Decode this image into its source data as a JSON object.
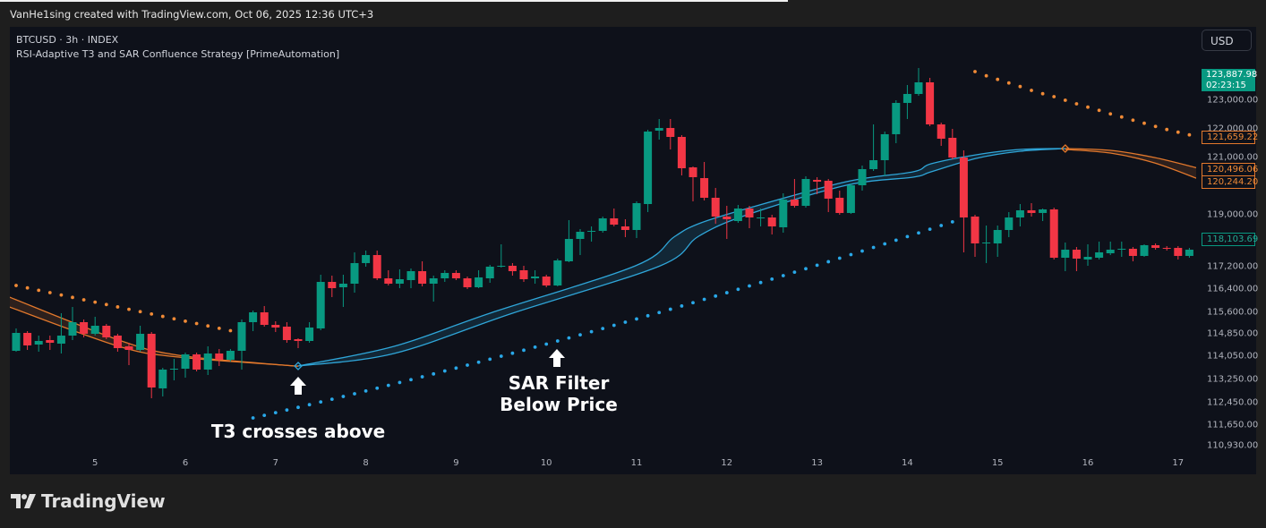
{
  "header": {
    "credit": "VanHe1sing created with TradingView.com, Oct 06, 2025 12:36 UTC+3"
  },
  "legend": {
    "symbol_line": "BTCUSD · 3h · INDEX",
    "indicator": "RSI-Adaptive T3 and SAR Confluence Strategy [PrimeAutomation]"
  },
  "currency_button": "USD",
  "price_axis": {
    "ticks": [
      123000,
      122000,
      121000,
      119000,
      117200,
      116400,
      115600,
      114850,
      114050,
      113250,
      112450,
      111650,
      110930
    ],
    "tick_labels": [
      "123,000.00",
      "122,000.00",
      "121,000.00",
      "119,000.00",
      "117,200.00",
      "116,400.00",
      "115,600.00",
      "114,850.00",
      "114,050.00",
      "113,250.00",
      "112,450.00",
      "111,650.00",
      "110,930.00"
    ],
    "labels": {
      "last_price": "123,887.98",
      "countdown": "02:23:15",
      "sar_upper": "121,659.22",
      "t3_upper": "120,496.06",
      "t3_lower": "120,244.20",
      "close": "118,103.69"
    }
  },
  "time_axis": {
    "labels": [
      "5",
      "6",
      "7",
      "8",
      "9",
      "10",
      "11",
      "12",
      "13",
      "14",
      "15",
      "16",
      "17"
    ],
    "first_day_bar_index": 7,
    "bars_per_day": 8
  },
  "annotations": {
    "t3_cross": "T3 crosses above",
    "sar_line1": "SAR Filter",
    "sar_line2": "Below Price"
  },
  "footer": {
    "brand": "TradingView"
  },
  "colors": {
    "up": "#089981",
    "down": "#f23645",
    "t3_bull": "#2fa6d9",
    "t3_bear": "#e2782c",
    "sar_bull": "#29a8e8",
    "sar_bear": "#f08a36"
  },
  "chart_data": {
    "type": "candlestick",
    "symbol": "BTCUSD",
    "interval": "3h",
    "ylim": [
      110800,
      124500
    ],
    "candles_ohlc": [
      [
        114250,
        115031,
        114219,
        114875
      ],
      [
        114875,
        114938,
        114281,
        114438
      ],
      [
        114469,
        114781,
        114219,
        114594
      ],
      [
        114625,
        114781,
        114281,
        114531
      ],
      [
        114500,
        115563,
        114156,
        114781
      ],
      [
        114781,
        115781,
        114625,
        115250
      ],
      [
        115250,
        115344,
        114719,
        114844
      ],
      [
        114844,
        115438,
        114781,
        115125
      ],
      [
        115125,
        115188,
        114656,
        114719
      ],
      [
        114781,
        114844,
        114219,
        114344
      ],
      [
        114406,
        114531,
        113750,
        114281
      ],
      [
        114281,
        115125,
        114219,
        114844
      ],
      [
        114844,
        114906,
        112594,
        112969
      ],
      [
        112938,
        113656,
        112656,
        113594
      ],
      [
        113594,
        113969,
        113219,
        113625
      ],
      [
        113625,
        114188,
        113313,
        114125
      ],
      [
        114125,
        114188,
        113531,
        113594
      ],
      [
        113594,
        114406,
        113406,
        114156
      ],
      [
        114156,
        114313,
        113719,
        113938
      ],
      [
        113938,
        114313,
        113875,
        114250
      ],
      [
        114250,
        115344,
        113594,
        115250
      ],
      [
        115250,
        115656,
        114938,
        115594
      ],
      [
        115594,
        115813,
        115094,
        115156
      ],
      [
        115156,
        115281,
        114906,
        115063
      ],
      [
        115094,
        115250,
        114531,
        114625
      ],
      [
        114656,
        114688,
        114344,
        114594
      ],
      [
        114594,
        115250,
        114531,
        115063
      ],
      [
        115031,
        116906,
        114969,
        116656
      ],
      [
        116656,
        116875,
        116125,
        116438
      ],
      [
        116469,
        116906,
        115781,
        116594
      ],
      [
        116594,
        117688,
        116281,
        117313
      ],
      [
        117313,
        117750,
        117188,
        117594
      ],
      [
        117594,
        117750,
        116719,
        116781
      ],
      [
        116781,
        117063,
        116531,
        116594
      ],
      [
        116594,
        117094,
        116438,
        116750
      ],
      [
        116719,
        117125,
        116438,
        117031
      ],
      [
        117031,
        117375,
        116500,
        116594
      ],
      [
        116594,
        116875,
        115969,
        116781
      ],
      [
        116781,
        117063,
        116656,
        116969
      ],
      [
        116969,
        117063,
        116719,
        116781
      ],
      [
        116781,
        116844,
        116406,
        116469
      ],
      [
        116469,
        117063,
        116438,
        116813
      ],
      [
        116781,
        117250,
        116625,
        117188
      ],
      [
        117188,
        117969,
        117156,
        117219
      ],
      [
        117219,
        117313,
        116875,
        117031
      ],
      [
        117063,
        117219,
        116656,
        116750
      ],
      [
        116781,
        117063,
        116594,
        116844
      ],
      [
        116844,
        116906,
        116469,
        116531
      ],
      [
        116531,
        117469,
        116500,
        117406
      ],
      [
        117375,
        118813,
        117344,
        118156
      ],
      [
        118156,
        118500,
        117594,
        118406
      ],
      [
        118438,
        118594,
        118063,
        118438
      ],
      [
        118438,
        118938,
        118375,
        118875
      ],
      [
        118875,
        119219,
        118594,
        118656
      ],
      [
        118594,
        118844,
        118219,
        118469
      ],
      [
        118469,
        119469,
        118188,
        119406
      ],
      [
        119375,
        121969,
        119094,
        121906
      ],
      [
        121938,
        122344,
        121625,
        122031
      ],
      [
        122031,
        122344,
        121281,
        121719
      ],
      [
        121719,
        121781,
        120375,
        120625
      ],
      [
        120656,
        120688,
        119469,
        120313
      ],
      [
        120281,
        120844,
        119500,
        119594
      ],
      [
        119594,
        119938,
        118688,
        118938
      ],
      [
        118938,
        119313,
        118156,
        118844
      ],
      [
        118781,
        119344,
        118719,
        119219
      ],
      [
        119219,
        119313,
        118531,
        118906
      ],
      [
        118906,
        119219,
        118594,
        118906
      ],
      [
        118906,
        119000,
        118313,
        118594
      ],
      [
        118563,
        119750,
        118375,
        119531
      ],
      [
        119531,
        120250,
        119250,
        119313
      ],
      [
        119313,
        120344,
        119250,
        120250
      ],
      [
        120219,
        120313,
        119719,
        120156
      ],
      [
        120188,
        120250,
        119094,
        119563
      ],
      [
        119594,
        119844,
        119000,
        119063
      ],
      [
        119063,
        120094,
        119031,
        120031
      ],
      [
        120031,
        120719,
        119844,
        120594
      ],
      [
        120594,
        122156,
        120531,
        120906
      ],
      [
        120906,
        121906,
        120344,
        121813
      ],
      [
        121813,
        123000,
        121500,
        122906
      ],
      [
        122906,
        123531,
        122344,
        123219
      ],
      [
        123219,
        124125,
        123156,
        123625
      ],
      [
        123625,
        123781,
        122094,
        122156
      ],
      [
        122156,
        122219,
        121406,
        121656
      ],
      [
        121688,
        122000,
        120938,
        121000
      ],
      [
        121000,
        121250,
        117688,
        118906
      ],
      [
        118938,
        119000,
        117531,
        118000
      ],
      [
        118031,
        118625,
        117313,
        118031
      ],
      [
        118000,
        118625,
        117531,
        118469
      ],
      [
        118469,
        119094,
        118219,
        118906
      ],
      [
        118906,
        119375,
        118594,
        119156
      ],
      [
        119156,
        119406,
        118938,
        119063
      ],
      [
        119063,
        119219,
        118781,
        119188
      ],
      [
        119188,
        119250,
        117438,
        117500
      ],
      [
        117500,
        118031,
        117031,
        117781
      ],
      [
        117781,
        117875,
        117031,
        117469
      ],
      [
        117438,
        117969,
        117219,
        117531
      ],
      [
        117500,
        118063,
        117438,
        117688
      ],
      [
        117656,
        118063,
        117594,
        117781
      ],
      [
        117813,
        118063,
        117531,
        117813
      ],
      [
        117813,
        117875,
        117375,
        117563
      ],
      [
        117563,
        117969,
        117531,
        117938
      ],
      [
        117938,
        118000,
        117781,
        117844
      ],
      [
        117844,
        117906,
        117750,
        117813
      ],
      [
        117844,
        117906,
        117438,
        117563
      ],
      [
        117563,
        117844,
        117500,
        117781
      ],
      [
        117750,
        118469,
        117688,
        118156
      ]
    ],
    "t3_band": [
      {
        "trend": "bear",
        "upper": [
          [
            -0.6,
            116125
          ],
          [
            9.1,
            114625
          ],
          [
            14.4,
            114094
          ],
          [
            23.7,
            113750
          ],
          [
            25,
            113719
          ]
        ],
        "lower": [
          [
            -0.6,
            115781
          ],
          [
            9.1,
            114406
          ],
          [
            14.4,
            114031
          ],
          [
            23.7,
            113750
          ],
          [
            25,
            113719
          ]
        ]
      },
      {
        "trend": "bull",
        "upper": [
          [
            25,
            113719
          ],
          [
            33.5,
            114406
          ],
          [
            42,
            115563
          ],
          [
            54.9,
            117219
          ],
          [
            58.3,
            118219
          ],
          [
            60.5,
            118688
          ],
          [
            64.8,
            119219
          ],
          [
            73.6,
            120156
          ],
          [
            79.5,
            120500
          ],
          [
            81.1,
            120781
          ],
          [
            85.1,
            121094
          ],
          [
            89,
            121281
          ],
          [
            93,
            121313
          ]
        ],
        "lower": [
          [
            25,
            113719
          ],
          [
            33.5,
            114156
          ],
          [
            44,
            115563
          ],
          [
            57.1,
            117219
          ],
          [
            60.5,
            118250
          ],
          [
            64.8,
            119000
          ],
          [
            73.6,
            120031
          ],
          [
            79.5,
            120313
          ],
          [
            81.1,
            120500
          ],
          [
            85.1,
            120969
          ],
          [
            89,
            121219
          ],
          [
            93,
            121313
          ]
        ]
      },
      {
        "trend": "bear",
        "upper": [
          [
            93,
            121313
          ],
          [
            97,
            121250
          ],
          [
            100.9,
            121000
          ],
          [
            104.8,
            120625
          ]
        ],
        "lower": [
          [
            93,
            121281
          ],
          [
            97,
            121156
          ],
          [
            100.9,
            120813
          ],
          [
            104.8,
            120250
          ]
        ]
      }
    ],
    "t3_cross_markers": [
      {
        "bar": 25,
        "price": 113719,
        "trend": "bull"
      },
      {
        "bar": 93,
        "price": 121313,
        "trend": "bear"
      }
    ],
    "sar": [
      {
        "trend": "bear",
        "start_bar": 0,
        "values": [
          116530,
          116447,
          116364,
          116281,
          116198,
          116115,
          116032,
          115949,
          115866,
          115783,
          115700,
          115617,
          115534,
          115451,
          115368,
          115285,
          115202,
          115119,
          115036,
          114953
        ]
      },
      {
        "trend": "bull",
        "start_bar": 21,
        "values": [
          111906,
          111997,
          112090,
          112182,
          112275,
          112369,
          112464,
          112559,
          112655,
          112751,
          112848,
          112946,
          113044,
          113143,
          113242,
          113342,
          113443,
          113545,
          113647,
          113749,
          113852,
          113956,
          114061,
          114166,
          114271,
          114378,
          114485,
          114592,
          114700,
          114809,
          114918,
          115028,
          115139,
          115250,
          115362,
          115474,
          115587,
          115701,
          115815,
          115930,
          116046,
          116162,
          116279,
          116397,
          116515,
          116634,
          116754,
          116874,
          116995,
          117116,
          117238,
          117361,
          117485,
          117609,
          117734,
          117859,
          117985,
          118112,
          118239,
          118367,
          118496,
          118625,
          118755
        ]
      },
      {
        "trend": "bear",
        "start_bar": 85,
        "values": [
          124000,
          123853,
          123728,
          123603,
          123478,
          123344,
          123228,
          123125,
          123000,
          122875,
          122759,
          122647,
          122522,
          122416,
          122303,
          122197,
          122084,
          121978,
          121884,
          121791
        ]
      }
    ]
  }
}
